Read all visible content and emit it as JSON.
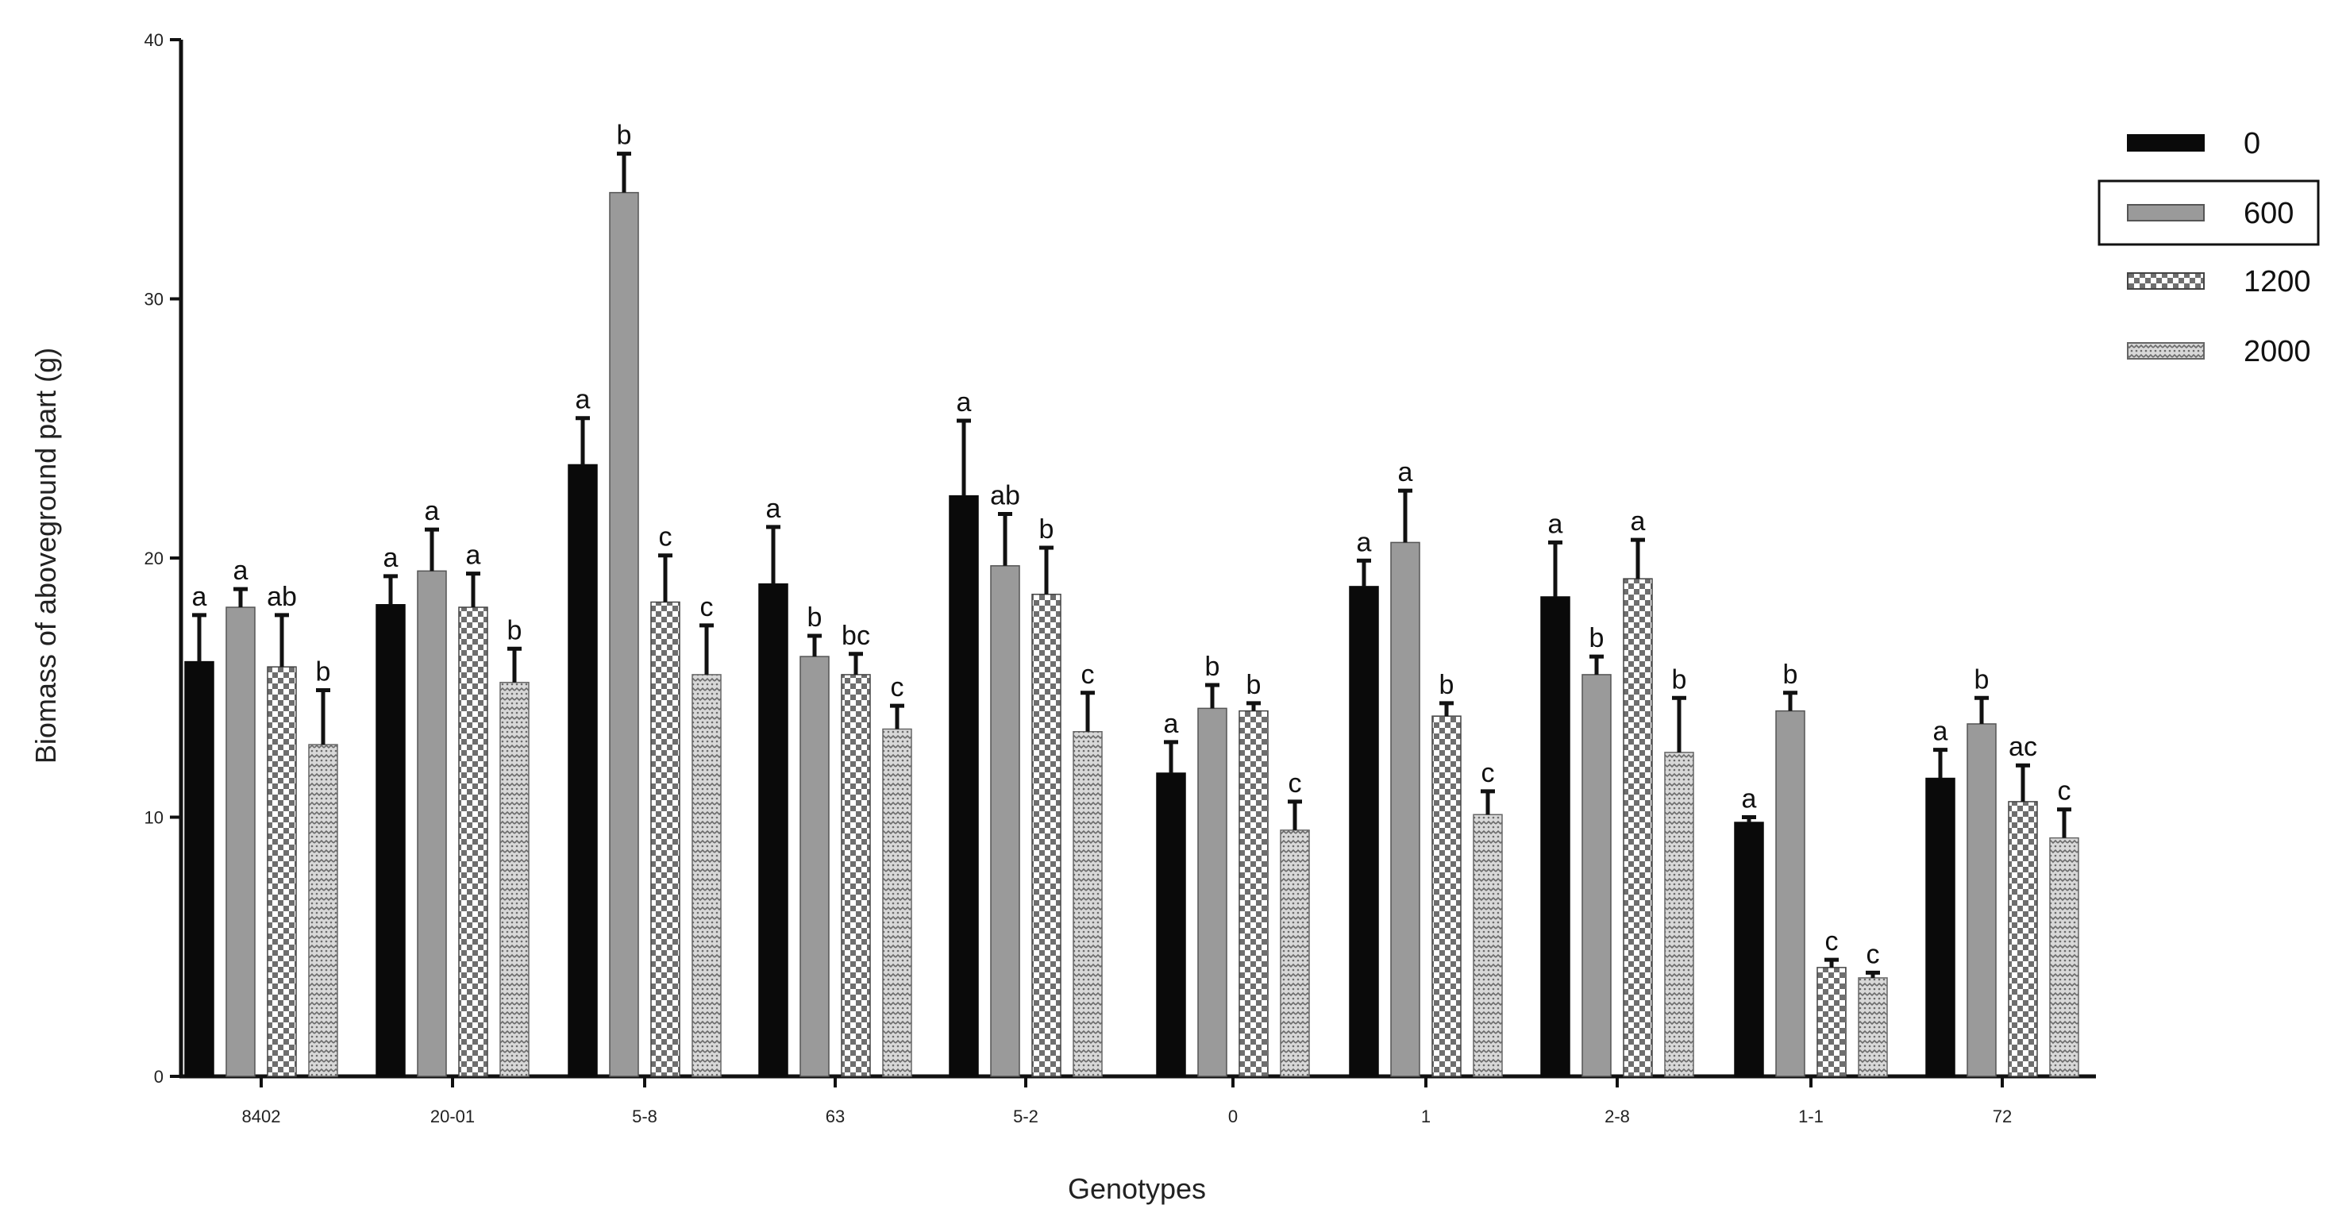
{
  "chart_data": {
    "type": "bar",
    "xlabel": "Genotypes",
    "ylabel": "Biomass of aboveground part (g)",
    "ylim": [
      0,
      40
    ],
    "yticks": [
      0,
      10,
      20,
      30,
      40
    ],
    "grid": false,
    "legend_position": "top-right",
    "categories": [
      "8402",
      "20-01",
      "5-8",
      "63",
      "5-2",
      "0",
      "1",
      "2-8",
      "1-1",
      "72"
    ],
    "series": [
      {
        "name": "0",
        "pattern": "solid-black",
        "values": [
          16.0,
          18.2,
          23.6,
          19.0,
          22.4,
          11.7,
          18.9,
          18.5,
          9.8,
          11.5
        ],
        "errors": [
          1.8,
          1.1,
          1.8,
          2.2,
          2.9,
          1.2,
          1.0,
          2.1,
          0.2,
          1.1
        ],
        "letters": [
          "a",
          "a",
          "a",
          "a",
          "a",
          "a",
          "a",
          "a",
          "a",
          "a"
        ]
      },
      {
        "name": "600",
        "pattern": "solid-gray",
        "values": [
          18.1,
          19.5,
          34.1,
          16.2,
          19.7,
          14.2,
          20.6,
          15.5,
          14.1,
          13.6
        ],
        "errors": [
          0.7,
          1.6,
          1.5,
          0.8,
          2.0,
          0.9,
          2.0,
          0.7,
          0.7,
          1.0
        ],
        "letters": [
          "a",
          "a",
          "b",
          "b",
          "ab",
          "b",
          "a",
          "b",
          "b",
          "b"
        ]
      },
      {
        "name": "1200",
        "pattern": "checker",
        "values": [
          15.8,
          18.1,
          18.3,
          15.5,
          18.6,
          14.1,
          13.9,
          19.2,
          4.2,
          10.6
        ],
        "errors": [
          2.0,
          1.3,
          1.8,
          0.8,
          1.8,
          0.3,
          0.5,
          1.5,
          0.3,
          1.4
        ],
        "letters": [
          "ab",
          "a",
          "c",
          "bc",
          "b",
          "b",
          "b",
          "a",
          "c",
          "ac"
        ]
      },
      {
        "name": "2000",
        "pattern": "dotted",
        "values": [
          12.8,
          15.2,
          15.5,
          13.4,
          13.3,
          9.5,
          10.1,
          12.5,
          3.8,
          9.2
        ],
        "errors": [
          2.1,
          1.3,
          1.9,
          0.9,
          1.5,
          1.1,
          0.9,
          2.1,
          0.2,
          1.1
        ],
        "letters": [
          "b",
          "b",
          "c",
          "c",
          "c",
          "c",
          "c",
          "b",
          "c",
          "c"
        ]
      }
    ],
    "colors": {
      "solid_black": "#0a0a0a",
      "solid_gray": "#9a9a9a",
      "checker_dark": "#707070",
      "dotted_dark": "#8a8a8a"
    }
  }
}
